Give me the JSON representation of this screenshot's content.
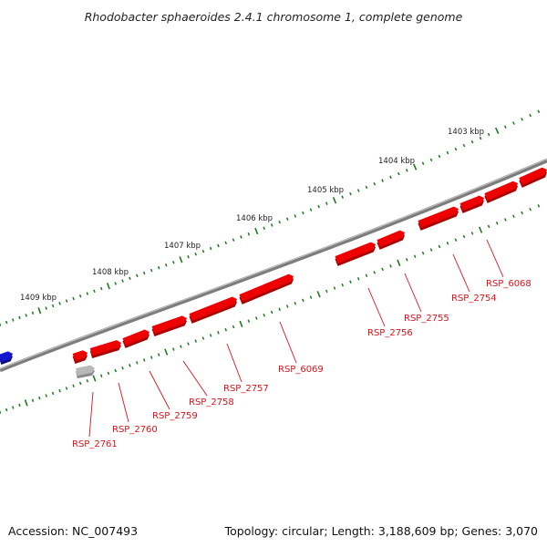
{
  "title": "Rhodobacter sphaeroides 2.4.1 chromosome 1, complete genome",
  "footer": {
    "accession": "Accession: NC_007493",
    "stats": "Topology: circular; Length: 3,188,609 bp; Genes: 3,070"
  },
  "colors": {
    "backbone": "#7d7d7d",
    "tick": "#1e7a1e",
    "gene_forward": "#ee0000",
    "gene_other": "#1515d0",
    "gene_gray": "#b8b8b8",
    "label": "#e0101a"
  },
  "kbp_ticks": [
    "1403 kbp",
    "1404 kbp",
    "1405 kbp",
    "1406 kbp",
    "1407 kbp",
    "1408 kbp",
    "1409 kbp"
  ],
  "gene_labels": [
    "RSP_6068",
    "RSP_2754",
    "RSP_2755",
    "RSP_2756",
    "RSP_6069",
    "RSP_2757",
    "RSP_2758",
    "RSP_2759",
    "RSP_2760",
    "RSP_2761"
  ]
}
